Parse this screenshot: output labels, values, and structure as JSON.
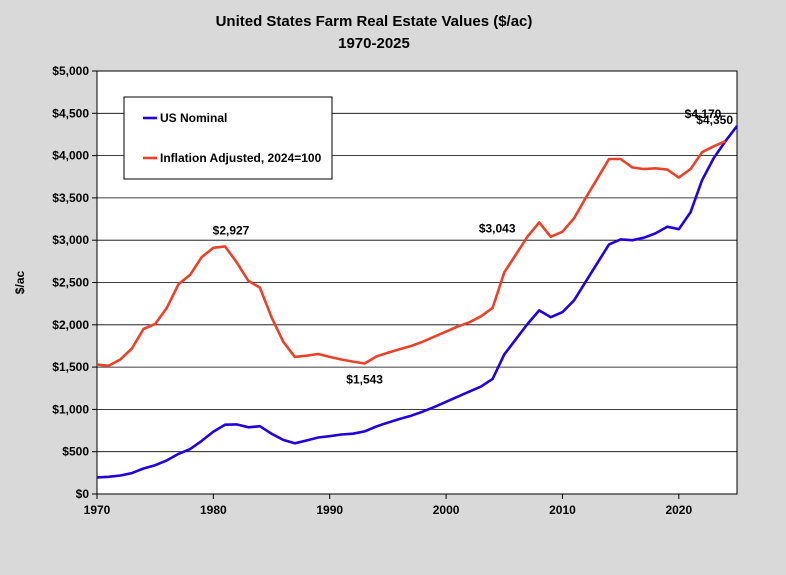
{
  "chart_data": {
    "type": "line",
    "title": "United States Farm Real Estate Values ($/ac)",
    "subtitle": "1970-2025",
    "xlabel": "",
    "ylabel": "$/ac",
    "xlim": [
      1970,
      2025
    ],
    "ylim": [
      0,
      5000
    ],
    "x_ticks": [
      1970,
      1980,
      1990,
      2000,
      2010,
      2020
    ],
    "y_ticks": [
      0,
      500,
      1000,
      1500,
      2000,
      2500,
      3000,
      3500,
      4000,
      4500,
      5000
    ],
    "y_tick_labels": [
      "$0",
      "$500",
      "$1,000",
      "$1,500",
      "$2,000",
      "$2,500",
      "$3,000",
      "$3,500",
      "$4,000",
      "$4,500",
      "$5,000"
    ],
    "grid": "horizontal",
    "legend_position": "top-left",
    "series": [
      {
        "name": "US Nominal",
        "color": "#2200dd",
        "x": [
          1970,
          1971,
          1972,
          1973,
          1974,
          1975,
          1976,
          1977,
          1978,
          1979,
          1980,
          1981,
          1982,
          1983,
          1984,
          1985,
          1986,
          1987,
          1988,
          1989,
          1990,
          1991,
          1992,
          1993,
          1994,
          1995,
          1996,
          1997,
          1998,
          1999,
          2000,
          2001,
          2002,
          2003,
          2004,
          2005,
          2006,
          2007,
          2008,
          2009,
          2010,
          2011,
          2012,
          2013,
          2014,
          2015,
          2016,
          2017,
          2018,
          2019,
          2020,
          2021,
          2022,
          2023,
          2024,
          2025
        ],
        "values": [
          196,
          203,
          219,
          247,
          301,
          340,
          397,
          474,
          531,
          628,
          737,
          819,
          823,
          788,
          801,
          713,
          640,
          599,
          632,
          668,
          683,
          703,
          713,
          740,
          798,
          844,
          887,
          926,
          974,
          1030,
          1090,
          1150,
          1210,
          1270,
          1360,
          1650,
          1830,
          2010,
          2170,
          2090,
          2150,
          2290,
          2510,
          2730,
          2950,
          3010,
          3000,
          3030,
          3080,
          3160,
          3130,
          3330,
          3710,
          3970,
          4170,
          4350
        ]
      },
      {
        "name": "Inflation Adjusted, 2024=100",
        "color": "#e8432a",
        "x": [
          1970,
          1971,
          1972,
          1973,
          1974,
          1975,
          1976,
          1977,
          1978,
          1979,
          1980,
          1981,
          1982,
          1983,
          1984,
          1985,
          1986,
          1987,
          1988,
          1989,
          1990,
          1991,
          1992,
          1993,
          1994,
          1995,
          1996,
          1997,
          1998,
          1999,
          2000,
          2001,
          2002,
          2003,
          2004,
          2005,
          2006,
          2007,
          2008,
          2009,
          2010,
          2011,
          2012,
          2013,
          2014,
          2015,
          2016,
          2017,
          2018,
          2019,
          2020,
          2021,
          2022,
          2023,
          2024
        ],
        "values": [
          1530,
          1515,
          1590,
          1720,
          1950,
          2010,
          2200,
          2480,
          2590,
          2800,
          2910,
          2927,
          2740,
          2520,
          2440,
          2090,
          1800,
          1620,
          1635,
          1655,
          1620,
          1590,
          1565,
          1543,
          1625,
          1670,
          1710,
          1750,
          1800,
          1860,
          1920,
          1980,
          2030,
          2100,
          2200,
          2620,
          2830,
          3043,
          3210,
          3040,
          3100,
          3260,
          3500,
          3730,
          3960,
          3960,
          3860,
          3840,
          3850,
          3835,
          3740,
          3840,
          4040,
          4110,
          4170
        ]
      }
    ],
    "annotations": [
      {
        "text": "$2,927",
        "x": 1981,
        "y": 2927
      },
      {
        "text": "$1,543",
        "x": 1993,
        "y": 1543
      },
      {
        "text": "$3,043",
        "x": 2007,
        "y": 3043
      },
      {
        "text": "$4,170",
        "x": 2024,
        "y": 4170
      },
      {
        "text": "$4,350",
        "x": 2025,
        "y": 4350
      }
    ]
  }
}
